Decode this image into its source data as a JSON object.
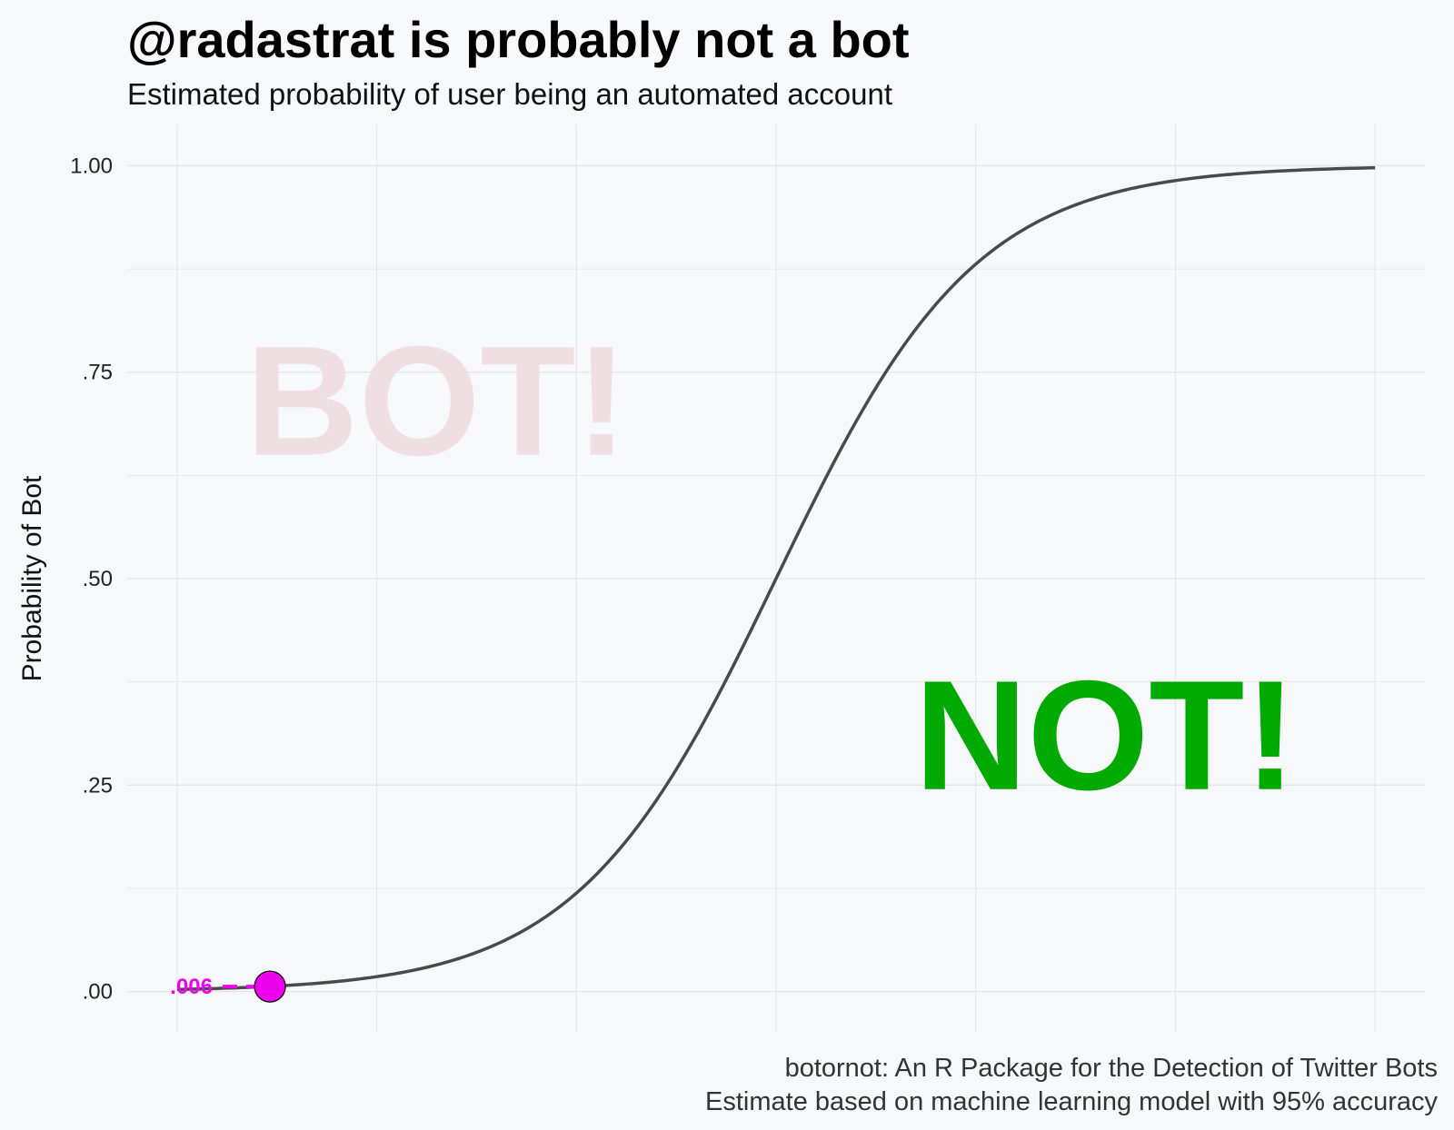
{
  "colors": {
    "background": "#f7f8fa",
    "grid": "#e3e4e8",
    "curve": "#4a4a4a",
    "point": "#ee00ee",
    "bot_text": "#f0dfe2",
    "not_text": "#00aa00"
  },
  "chart_data": {
    "type": "line",
    "title": "@radastrat is probably not a bot",
    "subtitle": "Estimated probability of user being an automated account",
    "xlabel": "",
    "ylabel": "Probability of Bot",
    "xlim": [
      -6.5,
      6.5
    ],
    "ylim": [
      -0.05,
      1.05
    ],
    "y_ticks": [
      0,
      0.25,
      0.5,
      0.75,
      1
    ],
    "y_tick_labels": [
      ".00",
      ".25",
      ".50",
      ".75",
      "1.00"
    ],
    "x_gridlines": [
      -6,
      -4,
      -2,
      0,
      2,
      4,
      6
    ],
    "grid": true,
    "curve": {
      "shape": "logistic",
      "x_range": [
        -6,
        6
      ]
    },
    "point": {
      "x": -5.07,
      "y": 0.006,
      "label": ".006"
    },
    "annotations": [
      {
        "text": "BOT!",
        "x": -3.4,
        "y": 0.7
      },
      {
        "text": "NOT!",
        "x": 3.3,
        "y": 0.295
      }
    ],
    "caption": [
      "botornot: An R Package for the Detection of Twitter Bots",
      "Estimate based on machine learning model with 95% accuracy"
    ]
  }
}
